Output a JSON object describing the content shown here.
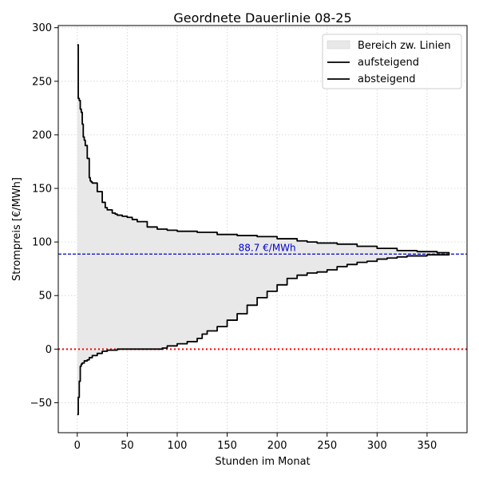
{
  "chart_data": {
    "type": "area",
    "title": "Geordnete Dauerlinie 08-25",
    "xlabel": "Stunden im Monat",
    "ylabel": "Strompreis [€/MWh]",
    "xlim": [
      -19,
      390
    ],
    "ylim": [
      -78,
      302
    ],
    "xticks": [
      0,
      50,
      100,
      150,
      200,
      250,
      300,
      350
    ],
    "yticks": [
      -50,
      0,
      50,
      100,
      150,
      200,
      250,
      300
    ],
    "grid": true,
    "legend_position": "top-right",
    "legend": {
      "fill": "Bereich zw. Linien",
      "asc": "aufsteigend",
      "desc": "absteigend"
    },
    "mean_line": {
      "value": 88.7,
      "label": "88.7 €/MWh",
      "color": "#0000cc"
    },
    "zero_line": {
      "value": 0,
      "color": "#ff0000"
    },
    "fill_color": "#e8e8e8",
    "series": [
      {
        "name": "absteigend",
        "x": [
          0,
          1,
          2,
          3,
          4,
          5,
          6,
          7,
          8,
          10,
          12,
          13,
          14,
          15,
          20,
          25,
          28,
          30,
          35,
          38,
          40,
          45,
          50,
          55,
          60,
          70,
          80,
          90,
          100,
          120,
          140,
          160,
          180,
          200,
          220,
          230,
          240,
          260,
          280,
          300,
          320,
          340,
          360,
          372
        ],
        "y": [
          284,
          234,
          232,
          224,
          221,
          210,
          198,
          195,
          190,
          178,
          160,
          157,
          156,
          155,
          147,
          137,
          132,
          130,
          127,
          126,
          125,
          124,
          123,
          121,
          119,
          114,
          112,
          111,
          110,
          109,
          107,
          106,
          105,
          103,
          101,
          100,
          99,
          98,
          96,
          94,
          92,
          91,
          90,
          89
        ]
      },
      {
        "name": "aufsteigend",
        "x": [
          0,
          1,
          2,
          3,
          4,
          5,
          7,
          10,
          12,
          15,
          20,
          25,
          30,
          40,
          50,
          60,
          70,
          80,
          85,
          90,
          100,
          110,
          120,
          125,
          130,
          140,
          150,
          160,
          170,
          180,
          190,
          200,
          210,
          220,
          230,
          240,
          250,
          260,
          270,
          280,
          290,
          300,
          310,
          320,
          330,
          340,
          350,
          360,
          372
        ],
        "y": [
          -61,
          -45,
          -30,
          -16,
          -14,
          -13,
          -11,
          -10,
          -8,
          -6,
          -4,
          -2,
          -1,
          0,
          0,
          0,
          0,
          0,
          1,
          3,
          5,
          7,
          10,
          14,
          17,
          21,
          27,
          33,
          41,
          48,
          54,
          60,
          66,
          69,
          71,
          72,
          74,
          77,
          79,
          81,
          82,
          84,
          85,
          86,
          87,
          87,
          88,
          88,
          89
        ]
      }
    ]
  }
}
